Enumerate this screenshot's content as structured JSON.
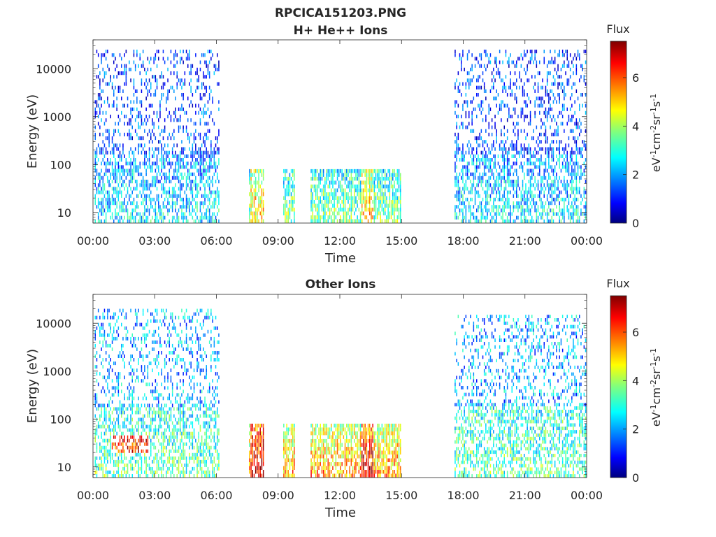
{
  "figure": {
    "title": "RPCICA151203.PNG"
  },
  "chart_data": [
    {
      "type": "heatmap",
      "title": "H+ He++ Ions",
      "xlabel": "Time",
      "ylabel": "Energy (eV)",
      "x_ticks": [
        "00:00",
        "03:00",
        "06:00",
        "09:00",
        "12:00",
        "15:00",
        "18:00",
        "21:00",
        "00:00"
      ],
      "xlim_hours": [
        0,
        24
      ],
      "y_scale": "log",
      "ylim": [
        6,
        40000
      ],
      "y_ticks": [
        10,
        100,
        1000,
        10000
      ],
      "y_tick_labels": [
        "10",
        "100",
        "1000",
        "10000"
      ],
      "colorbar": {
        "title": "Flux",
        "label": "eV-1cm-2sr-1s-1",
        "range": [
          0,
          7.5
        ],
        "ticks": [
          0,
          2,
          4,
          6
        ],
        "colormap": "jet"
      },
      "data_segments": [
        {
          "start": "00:05",
          "end": "06:10",
          "emin": 6,
          "emax": 25000,
          "description_level": "low-moderate broadband"
        },
        {
          "start": "07:35",
          "end": "08:20",
          "emin": 6,
          "emax": 80,
          "description_level": "moderate-high"
        },
        {
          "start": "09:15",
          "end": "09:50",
          "emin": 6,
          "emax": 80,
          "description_level": "moderate-high"
        },
        {
          "start": "10:35",
          "end": "15:00",
          "emin": 6,
          "emax": 80,
          "description_level": "low-moderate"
        },
        {
          "start": "17:35",
          "end": "24:00",
          "emin": 6,
          "emax": 25000,
          "description_level": "low broadband"
        }
      ]
    },
    {
      "type": "heatmap",
      "title": "Other Ions",
      "xlabel": "Time",
      "ylabel": "Energy (eV)",
      "x_ticks": [
        "00:00",
        "03:00",
        "06:00",
        "09:00",
        "12:00",
        "15:00",
        "18:00",
        "21:00",
        "00:00"
      ],
      "xlim_hours": [
        0,
        24
      ],
      "y_scale": "log",
      "ylim": [
        6,
        40000
      ],
      "y_ticks": [
        10,
        100,
        1000,
        10000
      ],
      "y_tick_labels": [
        "10",
        "100",
        "1000",
        "10000"
      ],
      "colorbar": {
        "title": "Flux",
        "label": "eV-1cm-2sr-1s-1",
        "range": [
          0,
          7.5
        ],
        "ticks": [
          0,
          2,
          4,
          6
        ],
        "colormap": "jet"
      },
      "data_segments": [
        {
          "start": "00:05",
          "end": "06:10",
          "emin": 6,
          "emax": 20000,
          "description_level": "moderate, high 20-45 eV near 01:00-02:40"
        },
        {
          "start": "07:35",
          "end": "08:20",
          "emin": 6,
          "emax": 80,
          "description_level": "high"
        },
        {
          "start": "09:15",
          "end": "09:50",
          "emin": 6,
          "emax": 80,
          "description_level": "high"
        },
        {
          "start": "10:35",
          "end": "15:00",
          "emin": 6,
          "emax": 80,
          "description_level": "moderate-high"
        },
        {
          "start": "17:35",
          "end": "24:00",
          "emin": 6,
          "emax": 15000,
          "description_level": "moderate"
        }
      ]
    }
  ]
}
